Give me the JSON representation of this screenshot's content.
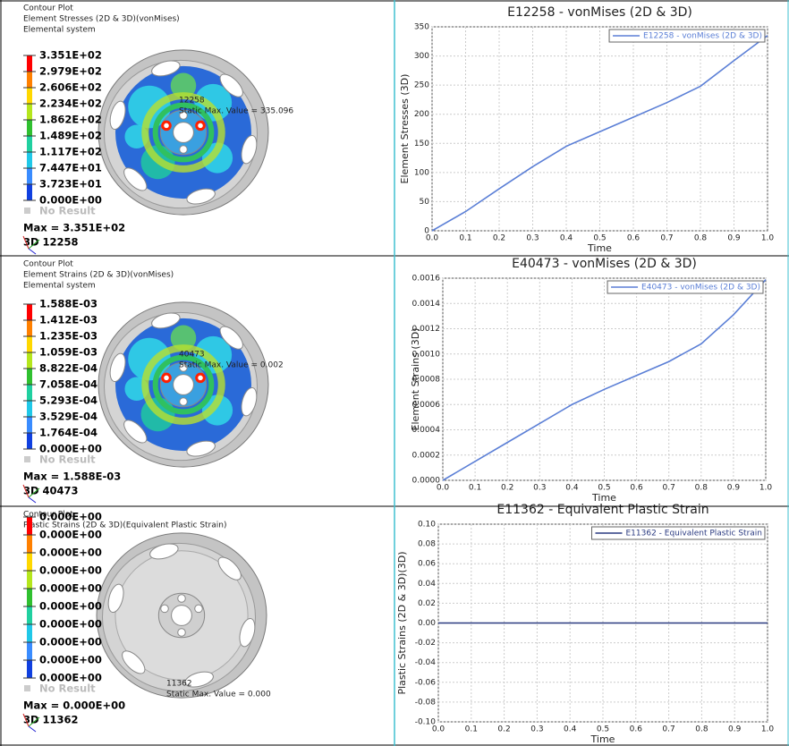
{
  "contour_panels": [
    {
      "title": "Contour Plot",
      "result": "Element Stresses (2D & 3D)(vonMises)",
      "system": "Elemental system",
      "legend": [
        "3.351E+02",
        "2.979E+02",
        "2.606E+02",
        "2.234E+02",
        "1.862E+02",
        "1.489E+02",
        "1.117E+02",
        "7.447E+01",
        "3.723E+01",
        "0.000E+00"
      ],
      "no_result": "No Result",
      "max": "Max = 3.351E+02",
      "element": "3D 12258",
      "node": "12258",
      "static_max": "Static Max. Value = 335.096"
    },
    {
      "title": "Contour Plot",
      "result": "Element Strains (2D & 3D)(vonMises)",
      "system": "Elemental system",
      "legend": [
        "1.588E-03",
        "1.412E-03",
        "1.235E-03",
        "1.059E-03",
        "8.822E-04",
        "7.058E-04",
        "5.293E-04",
        "3.529E-04",
        "1.764E-04",
        "0.000E+00"
      ],
      "no_result": "No Result",
      "max": "Max = 1.588E-03",
      "element": "3D 40473",
      "node": "40473",
      "static_max": "Static Max. Value = 0.002"
    },
    {
      "title": "Contour Plot",
      "result": "Plastic Strains (2D & 3D)(Equivalent Plastic Strain)",
      "legend": [
        "0.000E+00",
        "0.000E+00",
        "0.000E+00",
        "0.000E+00",
        "0.000E+00",
        "0.000E+00",
        "0.000E+00",
        "0.000E+00",
        "0.000E+00",
        "0.000E+00"
      ],
      "no_result": "No Result",
      "max": "Max = 0.000E+00",
      "element": "3D 11362",
      "node": "11362",
      "static_max": "Static Max. Value = 0.000"
    }
  ],
  "chart_data": [
    {
      "type": "line",
      "title": "E12258 - vonMises (2D & 3D)",
      "x_label": "Time",
      "y_label": "Element Stresses (3D)",
      "x": [
        0,
        0.1,
        0.2,
        0.3,
        0.4,
        0.5,
        0.6,
        0.7,
        0.8,
        0.9,
        1.0
      ],
      "series": [
        {
          "name": "E12258 - vonMises (2D & 3D)",
          "color": "#5b7fd6",
          "values": [
            0,
            33,
            72,
            110,
            145,
            170,
            195,
            220,
            248,
            292,
            335
          ]
        }
      ],
      "xlim": [
        0,
        1
      ],
      "xticks": [
        {
          "value": 0,
          "label": "0.0"
        },
        0.1,
        0.2,
        0.3,
        0.4,
        0.5,
        0.6,
        0.7,
        0.8,
        0.9,
        {
          "value": 1,
          "label": "1.0"
        }
      ],
      "ylim": [
        0,
        350
      ],
      "yticks": [
        0,
        50,
        100,
        150,
        200,
        250,
        300,
        350
      ],
      "grid": true,
      "legend": "upper right"
    },
    {
      "type": "line",
      "title": "E40473 - vonMises (2D & 3D)",
      "x_label": "Time",
      "y_label": "Element Strains (3D)",
      "x": [
        0,
        0.1,
        0.2,
        0.3,
        0.4,
        0.5,
        0.6,
        0.7,
        0.8,
        0.9,
        1.0
      ],
      "series": [
        {
          "name": "E40473 - vonMises (2D & 3D)",
          "color": "#5b7fd6",
          "values": [
            0,
            0.00015,
            0.0003,
            0.00045,
            0.0006,
            0.00072,
            0.00083,
            0.00094,
            0.00108,
            0.00131,
            0.001588
          ]
        }
      ],
      "xlim": [
        0,
        1
      ],
      "xticks": [
        {
          "value": 0,
          "label": "0.0"
        },
        0.1,
        0.2,
        0.3,
        0.4,
        0.5,
        0.6,
        0.7,
        0.8,
        0.9,
        {
          "value": 1,
          "label": "1.0"
        }
      ],
      "ylim": [
        0,
        0.0016
      ],
      "yticks": [
        {
          "value": 0,
          "label": "0.0000"
        },
        {
          "value": 0.0002,
          "label": "0.0002"
        },
        {
          "value": 0.0004,
          "label": "0.0004"
        },
        {
          "value": 0.0006,
          "label": "0.0006"
        },
        {
          "value": 0.0008,
          "label": "0.0008"
        },
        {
          "value": 0.001,
          "label": "0.0010"
        },
        {
          "value": 0.0012,
          "label": "0.0012"
        },
        {
          "value": 0.0014,
          "label": "0.0014"
        },
        {
          "value": 0.0016,
          "label": "0.0016"
        }
      ],
      "grid": true,
      "legend": "upper right"
    },
    {
      "type": "line",
      "title": "E11362 - Equivalent Plastic Strain",
      "x_label": "Time",
      "y_label": "Plastic Strains (2D & 3D)(3D)",
      "x": [
        0,
        0.1,
        0.2,
        0.3,
        0.4,
        0.5,
        0.6,
        0.7,
        0.8,
        0.9,
        1.0
      ],
      "series": [
        {
          "name": "E11362 - Equivalent Plastic Strain",
          "color": "#2a3a80",
          "values": [
            0,
            0,
            0,
            0,
            0,
            0,
            0,
            0,
            0,
            0,
            0
          ]
        }
      ],
      "xlim": [
        0,
        1
      ],
      "xticks": [
        {
          "value": 0,
          "label": "0.0"
        },
        0.1,
        0.2,
        0.3,
        0.4,
        0.5,
        0.6,
        0.7,
        0.8,
        0.9,
        {
          "value": 1,
          "label": "1.0"
        }
      ],
      "ylim": [
        -0.1,
        0.1
      ],
      "yticks": [
        {
          "value": -0.1,
          "label": "-0.10"
        },
        {
          "value": -0.08,
          "label": "-0.08"
        },
        {
          "value": -0.06,
          "label": "-0.06"
        },
        {
          "value": -0.04,
          "label": "-0.04"
        },
        {
          "value": -0.02,
          "label": "-0.02"
        },
        {
          "value": 0,
          "label": "0.00"
        },
        {
          "value": 0.02,
          "label": "0.02"
        },
        {
          "value": 0.04,
          "label": "0.04"
        },
        {
          "value": 0.06,
          "label": "0.06"
        },
        {
          "value": 0.08,
          "label": "0.08"
        },
        {
          "value": 0.1,
          "label": "0.10"
        }
      ],
      "grid": true,
      "legend": "upper right"
    }
  ]
}
